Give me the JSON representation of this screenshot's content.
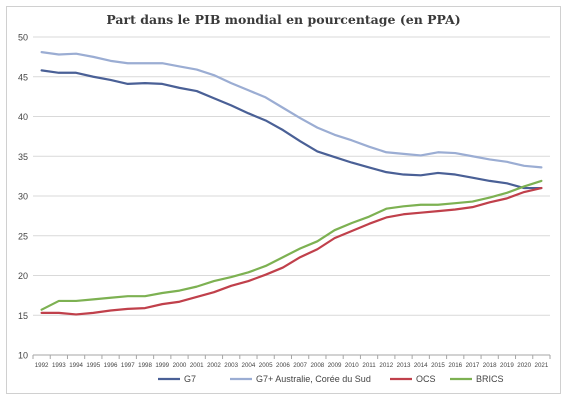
{
  "chart_data": {
    "type": "line",
    "title": "Part dans le PIB mondial en pourcentage (en PPA)",
    "x": [
      "1992",
      "1993",
      "1994",
      "1995",
      "1996",
      "1997",
      "1998",
      "1999",
      "2000",
      "2001",
      "2002",
      "2003",
      "2004",
      "2005",
      "2006",
      "2007",
      "2008",
      "2009",
      "2010",
      "2011",
      "2012",
      "2013",
      "2014",
      "2015",
      "2016",
      "2017",
      "2018",
      "2019",
      "2020",
      "2021"
    ],
    "ylim": [
      10,
      50
    ],
    "yticks": [
      10,
      15,
      20,
      25,
      30,
      35,
      40,
      45,
      50
    ],
    "grid": true,
    "legend_position": "bottom",
    "series": [
      {
        "name": "G7",
        "color": "#4a6096",
        "values": [
          45.8,
          45.5,
          45.5,
          45.0,
          44.6,
          44.1,
          44.2,
          44.1,
          43.6,
          43.2,
          42.3,
          41.4,
          40.4,
          39.5,
          38.3,
          36.9,
          35.6,
          34.9,
          34.2,
          33.6,
          33.0,
          32.7,
          32.6,
          32.9,
          32.7,
          32.3,
          31.9,
          31.6,
          31.0,
          31.0
        ]
      },
      {
        "name": "G7+ Australie, Corée du Sud",
        "color": "#9badd3",
        "values": [
          48.1,
          47.8,
          47.9,
          47.5,
          47.0,
          46.7,
          46.7,
          46.7,
          46.3,
          45.9,
          45.2,
          44.2,
          43.3,
          42.4,
          41.1,
          39.8,
          38.6,
          37.7,
          37.0,
          36.2,
          35.5,
          35.3,
          35.1,
          35.5,
          35.4,
          35.0,
          34.6,
          34.3,
          33.8,
          33.6
        ]
      },
      {
        "name": "OCS",
        "color": "#c0404b",
        "values": [
          15.3,
          15.3,
          15.1,
          15.3,
          15.6,
          15.8,
          15.9,
          16.4,
          16.7,
          17.3,
          17.9,
          18.7,
          19.3,
          20.1,
          21.0,
          22.3,
          23.3,
          24.7,
          25.6,
          26.5,
          27.3,
          27.7,
          27.9,
          28.1,
          28.3,
          28.6,
          29.2,
          29.7,
          30.5,
          31.0
        ]
      },
      {
        "name": "BRICS",
        "color": "#7db152",
        "values": [
          15.7,
          16.8,
          16.8,
          17.0,
          17.2,
          17.4,
          17.4,
          17.8,
          18.1,
          18.6,
          19.3,
          19.8,
          20.4,
          21.2,
          22.3,
          23.4,
          24.3,
          25.7,
          26.6,
          27.4,
          28.4,
          28.7,
          28.9,
          28.9,
          29.1,
          29.3,
          29.8,
          30.4,
          31.2,
          31.9
        ]
      }
    ]
  }
}
